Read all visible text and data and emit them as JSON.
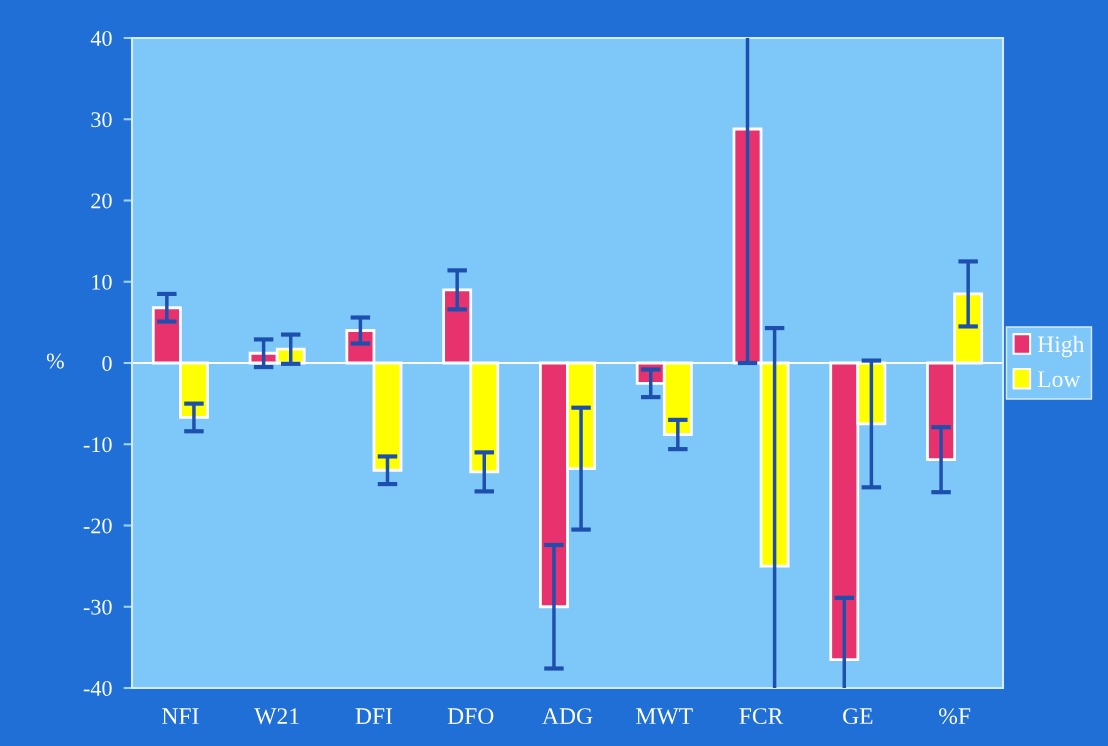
{
  "chart_data": {
    "type": "bar",
    "ylabel": "%",
    "categories": [
      "NFI",
      "W21",
      "DFI",
      "DFO",
      "ADG",
      "MWT",
      "FCR",
      "GE",
      "%F"
    ],
    "series": [
      {
        "name": "High",
        "color": "#e8326e",
        "values": [
          6.8,
          1.2,
          4.0,
          9.0,
          -30.0,
          -2.5,
          28.8,
          -36.5,
          -11.9
        ],
        "errors": [
          1.7,
          1.7,
          1.6,
          2.4,
          7.6,
          1.7,
          [
            0.0,
            40
          ],
          [
            -40,
            -28.9
          ],
          4.0
        ]
      },
      {
        "name": "Low",
        "color": "#ffff00",
        "values": [
          -6.7,
          1.7,
          -13.2,
          -13.4,
          -13.0,
          -8.8,
          -25.0,
          -7.5,
          8.5
        ],
        "errors": [
          1.7,
          1.8,
          1.7,
          2.4,
          7.5,
          1.8,
          [
            -40,
            4.3
          ],
          7.8,
          4.0
        ]
      }
    ],
    "ylim": [
      -40,
      40
    ],
    "yticks": [
      -40,
      -30,
      -20,
      -10,
      0,
      10,
      20,
      30,
      40
    ],
    "ref_lines": [
      {
        "axis": "y",
        "value": 0,
        "color": "#ffffff"
      }
    ],
    "grid": false,
    "legend": "right"
  }
}
